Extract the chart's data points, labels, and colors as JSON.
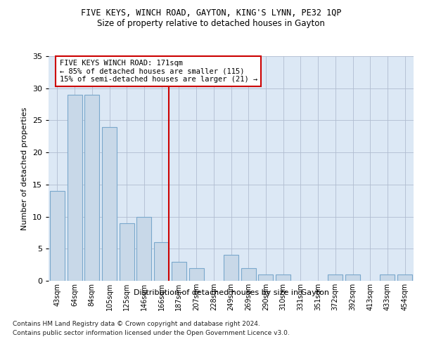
{
  "title1": "FIVE KEYS, WINCH ROAD, GAYTON, KING'S LYNN, PE32 1QP",
  "title2": "Size of property relative to detached houses in Gayton",
  "xlabel": "Distribution of detached houses by size in Gayton",
  "ylabel": "Number of detached properties",
  "categories": [
    "43sqm",
    "64sqm",
    "84sqm",
    "105sqm",
    "125sqm",
    "146sqm",
    "166sqm",
    "187sqm",
    "207sqm",
    "228sqm",
    "249sqm",
    "269sqm",
    "290sqm",
    "310sqm",
    "331sqm",
    "351sqm",
    "372sqm",
    "392sqm",
    "413sqm",
    "433sqm",
    "454sqm"
  ],
  "values": [
    14,
    29,
    29,
    24,
    9,
    10,
    6,
    3,
    2,
    0,
    4,
    2,
    1,
    1,
    0,
    0,
    1,
    1,
    0,
    1,
    1
  ],
  "bar_color": "#c8d8e8",
  "bar_edge_color": "#7aa8cc",
  "highlight_line_color": "#cc0000",
  "annotation_text": "FIVE KEYS WINCH ROAD: 171sqm\n← 85% of detached houses are smaller (115)\n15% of semi-detached houses are larger (21) →",
  "annotation_box_edge": "#cc0000",
  "ylim": [
    0,
    35
  ],
  "yticks": [
    0,
    5,
    10,
    15,
    20,
    25,
    30,
    35
  ],
  "plot_bg_color": "#dce8f5",
  "footer1": "Contains HM Land Registry data © Crown copyright and database right 2024.",
  "footer2": "Contains public sector information licensed under the Open Government Licence v3.0."
}
